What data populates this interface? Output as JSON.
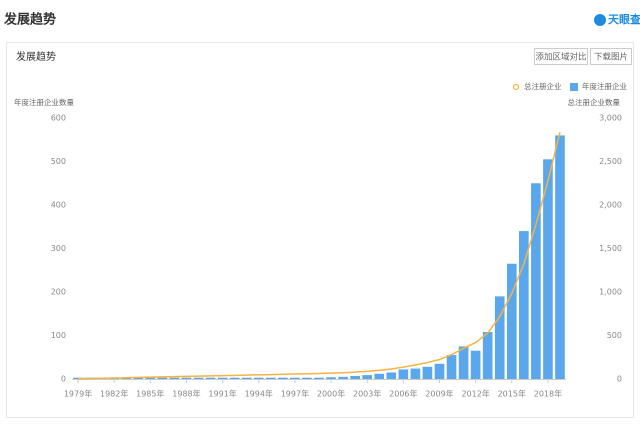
{
  "header": {
    "title": "发展趋势",
    "logo": "天眼查"
  },
  "panel": {
    "title": "发展趋势",
    "buttons": [
      "添加区域对比",
      "下载图片"
    ]
  },
  "chart_data": {
    "type": "bar",
    "y_label": "年度注册企业数量",
    "y2_label": "总注册企业数量",
    "categories": [
      "1979年",
      null,
      null,
      "1982年",
      null,
      null,
      "1985年",
      null,
      null,
      "1988年",
      null,
      null,
      "1991年",
      null,
      null,
      "1994年",
      null,
      null,
      "1997年",
      null,
      null,
      "2000年",
      null,
      null,
      "2003年",
      null,
      null,
      "2006年",
      null,
      null,
      "2009年",
      null,
      null,
      "2012年",
      null,
      null,
      "2015年",
      null,
      null,
      "2018年",
      null
    ],
    "series": [
      {
        "name": "年度注册企业",
        "type": "bar",
        "color": "#5aa7ee",
        "values": [
          3,
          3,
          3,
          3,
          3,
          3,
          3,
          3,
          3,
          3,
          3,
          3,
          3,
          3,
          3,
          3,
          3,
          3,
          3,
          3,
          3,
          4,
          5,
          7,
          9,
          12,
          15,
          22,
          24,
          28,
          35,
          55,
          75,
          65,
          108,
          190,
          265,
          340,
          450,
          505,
          560
        ]
      },
      {
        "name": "总注册企业",
        "type": "line",
        "axis": "y2",
        "color": "#f5b342",
        "values": [
          3,
          6,
          9,
          12,
          15,
          18,
          21,
          24,
          27,
          30,
          33,
          36,
          39,
          42,
          45,
          48,
          51,
          54,
          57,
          60,
          63,
          67,
          72,
          79,
          88,
          100,
          115,
          137,
          161,
          189,
          224,
          279,
          354,
          419,
          527,
          717,
          982,
          1322,
          1772,
          2277,
          2837
        ]
      }
    ],
    "ylim": [
      0,
      600
    ],
    "yticks": [
      0,
      100,
      200,
      300,
      400,
      500,
      600
    ],
    "y2lim": [
      0,
      3000
    ],
    "y2ticks": [
      0,
      500,
      {
        "value": 1000,
        "label": "1,000"
      },
      {
        "value": 1500,
        "label": "1,500"
      },
      {
        "value": 2000,
        "label": "2,000"
      },
      {
        "value": 2500,
        "label": "2,500"
      },
      {
        "value": 3000,
        "label": "3,000"
      }
    ],
    "grid": false,
    "legend": "top-right"
  }
}
